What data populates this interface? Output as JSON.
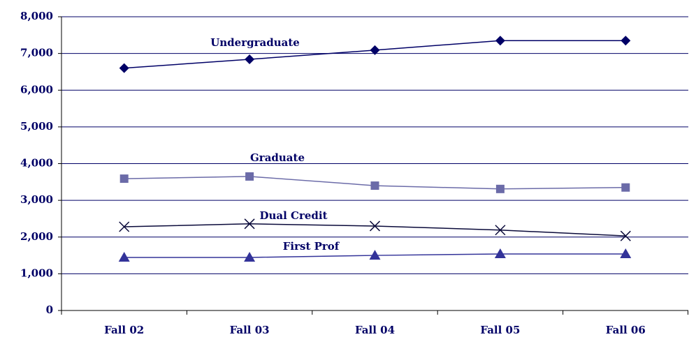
{
  "chart_data": {
    "type": "line",
    "categories": [
      "Fall 02",
      "Fall 03",
      "Fall 04",
      "Fall 05",
      "Fall 06"
    ],
    "series": [
      {
        "name": "Undergraduate",
        "color": "#000066",
        "marker": "diamond",
        "values": [
          6600,
          6840,
          7090,
          7350,
          7350
        ]
      },
      {
        "name": "Graduate",
        "color": "#6b6ba8",
        "marker": "square",
        "values": [
          3590,
          3650,
          3400,
          3310,
          3350
        ]
      },
      {
        "name": "Dual Credit",
        "color": "#0a0a3a",
        "marker": "x",
        "values": [
          2280,
          2360,
          2300,
          2190,
          2030
        ]
      },
      {
        "name": "First Prof",
        "color": "#333399",
        "marker": "triangle",
        "values": [
          1445,
          1445,
          1500,
          1540,
          1540
        ]
      }
    ],
    "ylim": [
      0,
      8000
    ],
    "yticks": [
      0,
      {
        "value": 1000,
        "label": "1,000"
      },
      {
        "value": 2000,
        "label": "2,000"
      },
      {
        "value": 3000,
        "label": "3,000"
      },
      {
        "value": 4000,
        "label": "4,000"
      },
      {
        "value": 5000,
        "label": "5,000"
      },
      {
        "value": 6000,
        "label": "6,000"
      },
      {
        "value": 7000,
        "label": "7,000"
      },
      {
        "value": 8000,
        "label": "8,000"
      }
    ],
    "grid": true
  }
}
